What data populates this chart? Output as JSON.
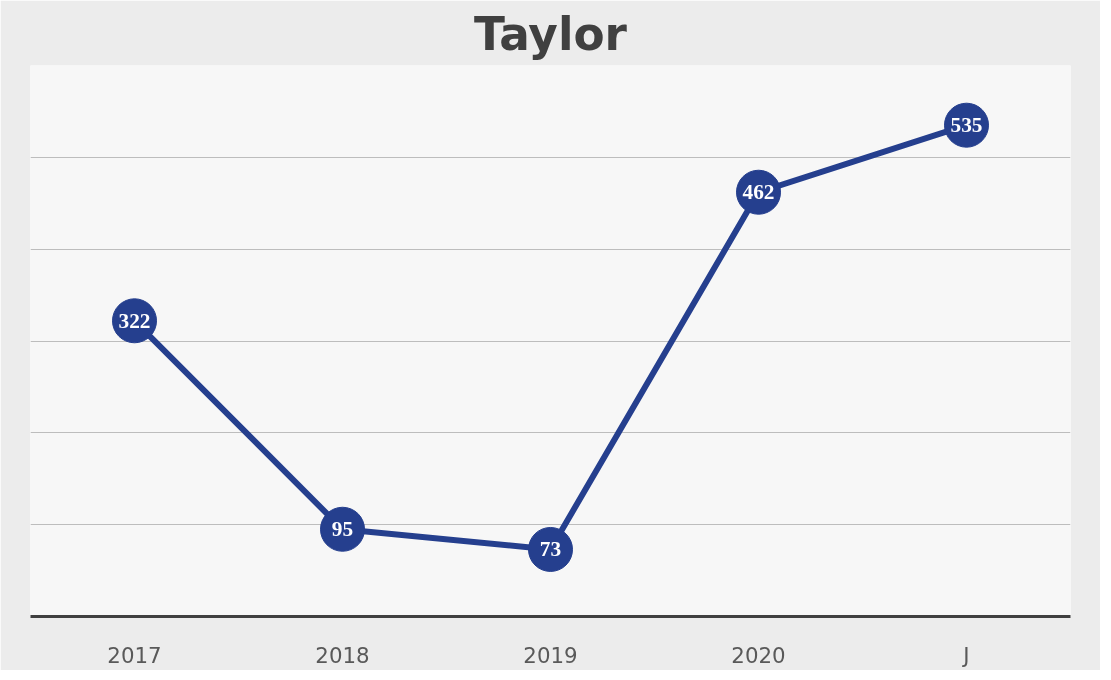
{
  "chart_data": {
    "type": "line",
    "title": "Taylor",
    "categories": [
      "2017",
      "2018",
      "2019",
      "2020",
      "J"
    ],
    "series": [
      {
        "color": "#253f8e",
        "values": [
          322,
          95,
          73,
          462,
          535
        ]
      }
    ],
    "ylim": [
      0,
      600
    ],
    "yticks": [
      {
        "value": 0,
        "label": null
      },
      {
        "value": 100,
        "label": null
      },
      {
        "value": 200,
        "label": null
      },
      {
        "value": 300,
        "label": null
      },
      {
        "value": 400,
        "label": null
      },
      {
        "value": 500,
        "label": null
      },
      {
        "value": 600,
        "label": null
      }
    ],
    "tick_labels": "x",
    "grid": "y",
    "marker": "circle",
    "line_style": "solid",
    "data_labels": true
  }
}
